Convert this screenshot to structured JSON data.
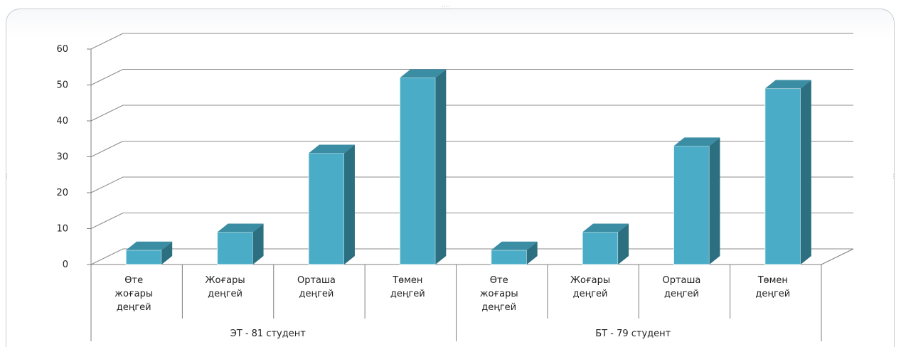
{
  "chart_data": {
    "type": "bar",
    "style": "3d-clustered-column",
    "groups": [
      {
        "label": "ЭТ - 81 студент",
        "categories": [
          [
            "Өте",
            "жоғары",
            "деңгей"
          ],
          [
            "Жоғары",
            "деңгей"
          ],
          [
            "Орташа",
            "деңгей"
          ],
          [
            "Төмен",
            "деңгей"
          ]
        ],
        "values": [
          4,
          9,
          31,
          52
        ]
      },
      {
        "label": "БТ - 79 студент",
        "categories": [
          [
            "Өте",
            "жоғары",
            "деңгей"
          ],
          [
            "Жоғары",
            "деңгей"
          ],
          [
            "Орташа",
            "деңгей"
          ],
          [
            "Төмен",
            "деңгей"
          ]
        ],
        "values": [
          4,
          9,
          33,
          49
        ]
      }
    ],
    "yticks": [
      "0",
      "10",
      "20",
      "30",
      "40",
      "50",
      "60"
    ],
    "ylim": [
      0,
      60
    ],
    "grid": true,
    "legend": "none",
    "colors": {
      "bar_front": "#4aacc6",
      "bar_side": "#2c6f80",
      "bar_top": "#3a8da3",
      "grid": "#8c8c8c",
      "axis": "#7f7f7f"
    }
  }
}
